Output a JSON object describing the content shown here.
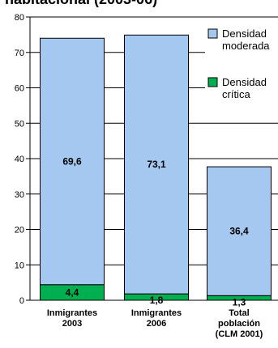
{
  "chart_data": {
    "type": "bar",
    "stacked": true,
    "title": "habitacional (2003-06)",
    "categories": [
      [
        "Inmigrantes",
        "2003"
      ],
      [
        "Inmigrantes",
        "2006"
      ],
      [
        "Total",
        "población",
        "(CLM 2001)"
      ]
    ],
    "series": [
      {
        "name": [
          "Densidad",
          "crítica"
        ],
        "values": [
          4.4,
          1.8,
          1.3
        ],
        "labels": [
          "4,4",
          "1,8",
          "1,3"
        ],
        "color": "#00b050"
      },
      {
        "name": [
          "Densidad",
          "moderada"
        ],
        "values": [
          69.6,
          73.1,
          36.4
        ],
        "labels": [
          "69,6",
          "73,1",
          "36,4"
        ],
        "color": "#a4c8f0"
      }
    ],
    "ylim": [
      0,
      80
    ],
    "yticks": [
      "0",
      "10",
      "20",
      "30",
      "40",
      "50",
      "60",
      "70",
      "80"
    ],
    "legend_position": "right",
    "grid": true
  }
}
